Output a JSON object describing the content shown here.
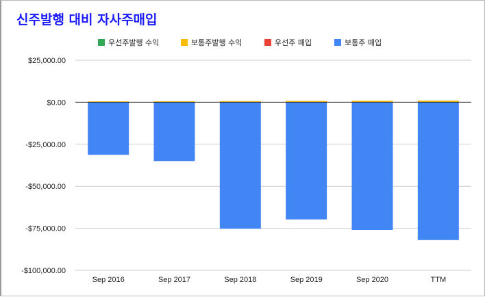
{
  "chart_data": {
    "type": "bar",
    "stacked": true,
    "title": "신주발행 대비 자사주매입",
    "categories": [
      "Sep 2016",
      "Sep 2017",
      "Sep 2018",
      "Sep 2019",
      "Sep 2020",
      "TTM"
    ],
    "series": [
      {
        "name": "우선주발행 수익",
        "color": "#34a853",
        "values": [
          0,
          0,
          0,
          0,
          0,
          0
        ]
      },
      {
        "name": "보통주발행 수익",
        "color": "#fbbc04",
        "values": [
          495,
          555,
          669,
          781,
          880,
          960
        ]
      },
      {
        "name": "우선주 매입",
        "color": "#ea4335",
        "values": [
          0,
          0,
          0,
          0,
          0,
          0
        ]
      },
      {
        "name": "보통주 매입",
        "color": "#4285f4",
        "values": [
          -31292,
          -35000,
          -75265,
          -69714,
          -75992,
          -82000
        ]
      }
    ],
    "ylim": [
      -100000,
      25000
    ],
    "yticks": [
      25000,
      0,
      -25000,
      -50000,
      -75000,
      -100000
    ],
    "ytick_labels": [
      "$25,000.00",
      "$0.00",
      "-$25,000.00",
      "-$50,000.00",
      "-$75,000.00",
      "-$100,000.00"
    ],
    "grid": true,
    "legend_position": "top"
  }
}
